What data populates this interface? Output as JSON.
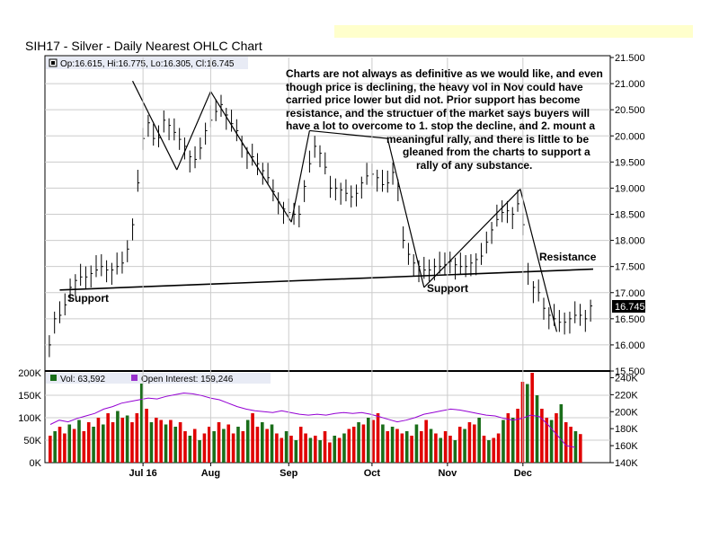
{
  "header": {
    "title": "SIH17 - Silver - Daily Nearest OHLC Chart",
    "ohlc_readout": "Op:16.615, Hi:16.775, Lo:16.305, Cl:16.745",
    "vol_legend": "Vol: 63,592",
    "oi_legend": "Open Interest: 159,246"
  },
  "annotation": {
    "lines": [
      "Charts are not always as definitive as we would like, and even",
      "though price is declining, the heavy vol in Nov could have",
      "carried price lower but did not.  Prior support has become",
      "resistance, and the structuer of the market says buyers will",
      "have a lot to overcome to 1. stop the decline, and 2. mount a",
      "meaningful rally, and there is little to be",
      "gleaned from the charts to support a",
      "rally of any substance."
    ]
  },
  "labels": {
    "support_left": "Support",
    "support_right": "Support",
    "resistance": "Resistance",
    "last_price": "16.745"
  },
  "colors": {
    "up_volume": "#1a6e1a",
    "down_volume": "#e00000",
    "open_interest": "#9400d3",
    "legend_box": "#e8ebf5",
    "marker_green": "#1a6e1a",
    "marker_purple": "#9933cc"
  },
  "chart_data": [
    {
      "type": "ohlc",
      "title": "SIH17 - Silver - Daily Nearest OHLC Chart",
      "ylim": [
        15.5,
        21.5
      ],
      "y_ticks": [
        "15.500",
        "16.000",
        "16.500",
        "17.000",
        "17.500",
        "18.000",
        "18.500",
        "19.000",
        "19.500",
        "20.000",
        "20.500",
        "21.000",
        "21.500"
      ],
      "x_ticks": [
        "Jul 16",
        "Aug",
        "Sep",
        "Oct",
        "Nov",
        "Dec"
      ],
      "close_path": [
        [
          1,
          16.0
        ],
        [
          3,
          16.5
        ],
        [
          6,
          16.6
        ],
        [
          9,
          17.1
        ],
        [
          12,
          17.3
        ],
        [
          15,
          17.3
        ],
        [
          18,
          17.4
        ],
        [
          21,
          17.5
        ],
        [
          24,
          17.4
        ],
        [
          27,
          17.5
        ],
        [
          30,
          17.6
        ],
        [
          33,
          18.3
        ],
        [
          36,
          19.5
        ],
        [
          38,
          20.4
        ],
        [
          40,
          20.1
        ],
        [
          42,
          19.8
        ],
        [
          45,
          20.3
        ],
        [
          47,
          20.2
        ],
        [
          50,
          20.0
        ],
        [
          53,
          19.8
        ],
        [
          56,
          19.5
        ],
        [
          58,
          19.6
        ],
        [
          61,
          20.1
        ],
        [
          64,
          20.4
        ],
        [
          67,
          20.6
        ],
        [
          70,
          20.3
        ],
        [
          73,
          20.1
        ],
        [
          76,
          19.7
        ],
        [
          79,
          19.6
        ],
        [
          82,
          19.4
        ],
        [
          85,
          19.2
        ],
        [
          88,
          18.8
        ],
        [
          91,
          18.6
        ],
        [
          94,
          18.5
        ],
        [
          97,
          18.5
        ],
        [
          100,
          19.3
        ],
        [
          103,
          19.8
        ],
        [
          106,
          19.6
        ],
        [
          109,
          19.0
        ],
        [
          112,
          19.0
        ],
        [
          115,
          18.9
        ],
        [
          118,
          18.8
        ],
        [
          121,
          19.1
        ],
        [
          124,
          19.3
        ],
        [
          127,
          19.2
        ],
        [
          130,
          19.0
        ],
        [
          133,
          19.3
        ],
        [
          136,
          18.9
        ],
        [
          137,
          18.0
        ],
        [
          140,
          17.6
        ],
        [
          143,
          17.5
        ],
        [
          146,
          17.4
        ],
        [
          149,
          17.5
        ],
        [
          152,
          17.5
        ],
        [
          155,
          17.6
        ],
        [
          158,
          17.5
        ],
        [
          161,
          17.5
        ],
        [
          164,
          17.6
        ],
        [
          167,
          17.7
        ],
        [
          170,
          18.1
        ],
        [
          173,
          18.4
        ],
        [
          176,
          18.6
        ],
        [
          179,
          18.5
        ],
        [
          182,
          18.8
        ],
        [
          184,
          17.8
        ],
        [
          186,
          17.0
        ],
        [
          188,
          17.2
        ],
        [
          190,
          16.8
        ],
        [
          192,
          16.6
        ],
        [
          195,
          16.5
        ],
        [
          198,
          16.4
        ],
        [
          201,
          16.5
        ],
        [
          204,
          16.6
        ],
        [
          207,
          16.5
        ],
        [
          209,
          16.745
        ]
      ],
      "trend_lines": [
        {
          "name": "Support",
          "from": [
            5,
            17.05
          ],
          "to": [
            210,
            17.45
          ]
        },
        {
          "from": [
            33,
            21.05
          ],
          "to": [
            50,
            19.35
          ]
        },
        {
          "from": [
            50,
            19.35
          ],
          "to": [
            63,
            20.85
          ]
        },
        {
          "from": [
            63,
            20.85
          ],
          "to": [
            94,
            18.35
          ]
        },
        {
          "from": [
            94,
            18.35
          ],
          "to": [
            101,
            20.1
          ]
        },
        {
          "from": [
            101,
            20.1
          ],
          "to": [
            131,
            19.95
          ]
        },
        {
          "from": [
            131,
            19.95
          ],
          "to": [
            145,
            17.1
          ]
        },
        {
          "from": [
            145,
            17.1
          ],
          "to": [
            182,
            18.98
          ]
        },
        {
          "from": [
            182,
            18.98
          ],
          "to": [
            196,
            16.25
          ]
        }
      ],
      "annotations": [
        "Support",
        "Support",
        "Resistance"
      ]
    },
    {
      "type": "bar",
      "ylim": [
        0,
        200000
      ],
      "y_ticks": [
        "0K",
        "50K",
        "100K",
        "150K",
        "200K"
      ],
      "y2lim": [
        140000,
        250000
      ],
      "y2_ticks": [
        "140K",
        "160K",
        "180K",
        "200K",
        "220K",
        "240K"
      ],
      "series": [
        {
          "name": "Vol: 63,592",
          "values": [
            60000,
            70000,
            80000,
            65000,
            85000,
            75000,
            95000,
            70000,
            90000,
            80000,
            100000,
            85000,
            110000,
            90000,
            115000,
            100000,
            105000,
            90000,
            110000,
            180000,
            120000,
            90000,
            100000,
            95000,
            85000,
            95000,
            80000,
            90000,
            70000,
            60000,
            75000,
            50000,
            65000,
            80000,
            70000,
            90000,
            75000,
            85000,
            65000,
            80000,
            70000,
            95000,
            110000,
            80000,
            90000,
            75000,
            85000,
            65000,
            55000,
            70000,
            60000,
            50000,
            80000,
            65000,
            55000,
            60000,
            50000,
            70000,
            45000,
            60000,
            55000,
            65000,
            75000,
            80000,
            90000,
            85000,
            100000,
            95000,
            110000,
            85000,
            70000,
            80000,
            75000,
            65000,
            70000,
            60000,
            85000,
            70000,
            95000,
            75000,
            65000,
            55000,
            70000,
            60000,
            50000,
            80000,
            75000,
            90000,
            85000,
            100000,
            60000,
            50000,
            55000,
            65000,
            95000,
            110000,
            100000,
            120000,
            180000,
            175000,
            200000,
            150000,
            120000,
            100000,
            95000,
            110000,
            130000,
            90000,
            80000,
            70000,
            63592
          ]
        },
        {
          "name": "Open Interest: 159,246",
          "values": [
            185000,
            190000,
            188000,
            192000,
            195000,
            198000,
            203000,
            206000,
            210000,
            212000,
            214000,
            216000,
            215000,
            218000,
            220000,
            222000,
            221000,
            219000,
            216000,
            214000,
            210000,
            206000,
            203000,
            201000,
            200000,
            199000,
            201000,
            199000,
            197000,
            196000,
            197000,
            196000,
            198000,
            199000,
            198000,
            199000,
            197000,
            194000,
            191000,
            188000,
            190000,
            193000,
            197000,
            199000,
            201000,
            203000,
            202000,
            200000,
            198000,
            196000,
            195000,
            192000,
            190000,
            192000,
            196000,
            194000,
            184000,
            172000,
            160000,
            158000
          ]
        }
      ]
    }
  ]
}
